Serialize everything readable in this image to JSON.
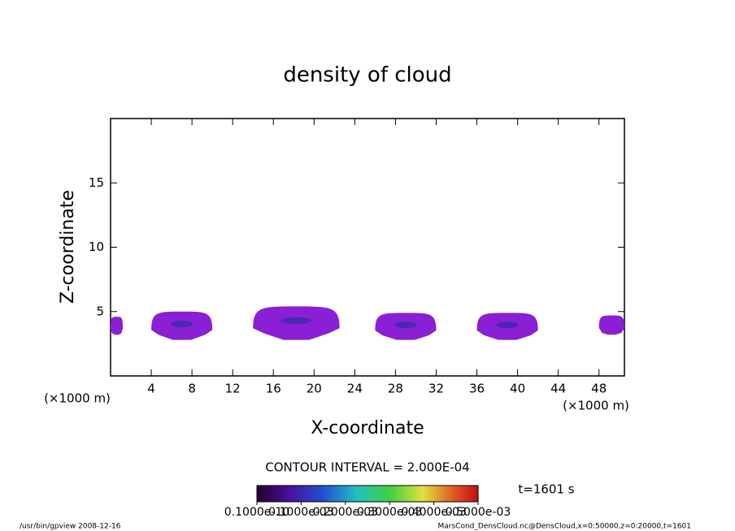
{
  "chart_data": {
    "type": "contour",
    "title": "density of cloud",
    "xlabel": "X-coordinate",
    "ylabel": "Z-coordinate",
    "x_unit": "(×1000 m)",
    "x_unit_right": "(×1000 m)",
    "xlim": [
      0,
      50.5
    ],
    "xticks": [
      4,
      8,
      12,
      16,
      20,
      24,
      28,
      32,
      36,
      40,
      44,
      48
    ],
    "ylim": [
      0,
      20
    ],
    "yticks": [
      5,
      10,
      15
    ],
    "color": "#8a1fd6",
    "core_color": "#3a2aa8",
    "clouds": [
      {
        "x": [
          0,
          1.2
        ],
        "z": [
          3.2,
          4.6
        ]
      },
      {
        "x": [
          4,
          10
        ],
        "z": [
          2.8,
          5
        ]
      },
      {
        "x": [
          14,
          22.5
        ],
        "z": [
          2.8,
          5.4
        ]
      },
      {
        "x": [
          26,
          32
        ],
        "z": [
          2.8,
          4.9
        ]
      },
      {
        "x": [
          36,
          42
        ],
        "z": [
          2.8,
          4.9
        ]
      },
      {
        "x": [
          48,
          50.5
        ],
        "z": [
          3.2,
          4.7
        ]
      }
    ],
    "contour_interval": "CONTOUR INTERVAL = 2.000E-04",
    "time_label": "t=1601 s",
    "colorbar_lim": [
      0,
      0.0005
    ],
    "colorbar_ticks": [
      {
        "value": 1e-11,
        "label": "0.1000e-10"
      },
      {
        "value": 0.0001,
        "label": "0.1000e-03"
      },
      {
        "value": 0.0002,
        "label": "0.2000e-03"
      },
      {
        "value": 0.0003,
        "label": "0.3000e-03"
      },
      {
        "value": 0.0004,
        "label": "0.4000e-03"
      },
      {
        "value": 0.0005,
        "label": "0.5000e-03"
      }
    ],
    "footer_left": "/usr/bin/gpview  2008-12-16",
    "footer_right": "MarsCond_DensCloud.nc@DensCloud,x=0:50000,z=0:20000,t=1601"
  }
}
